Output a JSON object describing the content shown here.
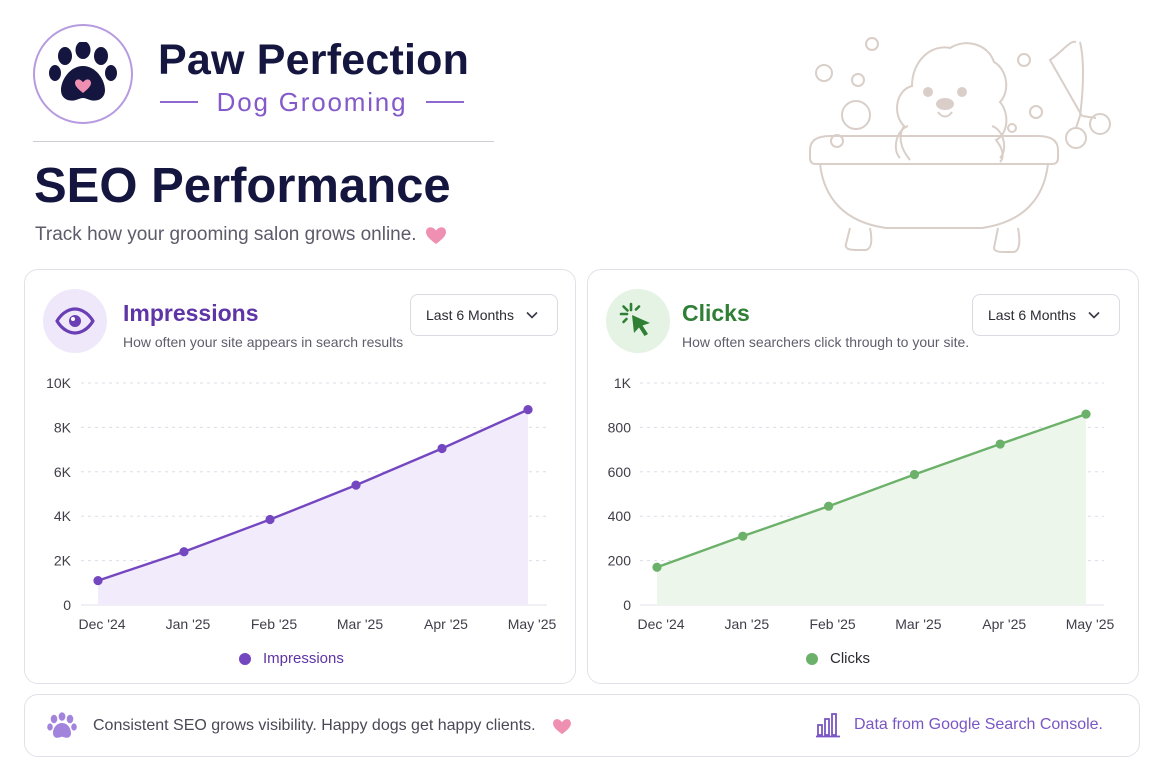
{
  "brand": {
    "name": "Paw Perfection",
    "tagline": "Dog Grooming",
    "logo_icon": "paw-heart-icon"
  },
  "page": {
    "title": "SEO Performance",
    "subtitle": "Track how your grooming salon grows online.",
    "illustration": "dog-in-bathtub-with-scissors"
  },
  "colors": {
    "primary_purple": "#7447c0",
    "primary_green": "#6cb16a",
    "heart_pink": "#ef8fb1",
    "title_navy": "#15163f"
  },
  "cards": {
    "impressions": {
      "title": "Impressions",
      "description": "How often your site appears in search results",
      "dropdown_value": "Last 6 Months",
      "icon": "eye-icon"
    },
    "clicks": {
      "title": "Clicks",
      "description": "How often searchers click through to your site.",
      "dropdown_value": "Last 6 Months",
      "icon": "cursor-click-icon"
    }
  },
  "chart_data": [
    {
      "type": "area",
      "categories": [
        "Dec '24",
        "Jan '25",
        "Feb '25",
        "Mar '25",
        "Apr '25",
        "May '25"
      ],
      "series": [
        {
          "name": "Impressions",
          "values": [
            1100,
            2400,
            3850,
            5400,
            7050,
            8800
          ]
        }
      ],
      "ylim": [
        0,
        10000
      ],
      "yticks": [
        0,
        2000,
        4000,
        6000,
        8000,
        10000
      ],
      "ytick_labels": [
        "0",
        "2K",
        "4K",
        "6K",
        "8K",
        "10K"
      ],
      "grid": true,
      "legend": "bottom-center",
      "color": "#7447c0",
      "fill": "#f1ebfb"
    },
    {
      "type": "area",
      "categories": [
        "Dec '24",
        "Jan '25",
        "Feb '25",
        "Mar '25",
        "Apr '25",
        "May '25"
      ],
      "series": [
        {
          "name": "Clicks",
          "values": [
            170,
            310,
            445,
            588,
            725,
            860
          ]
        }
      ],
      "ylim": [
        0,
        1000
      ],
      "yticks": [
        0,
        200,
        400,
        600,
        800,
        1000
      ],
      "ytick_labels": [
        "0",
        "200",
        "400",
        "600",
        "800",
        "1K"
      ],
      "grid": true,
      "legend": "bottom-center",
      "color": "#6cb16a",
      "fill": "#ecf6ea"
    }
  ],
  "footer": {
    "message": "Consistent SEO grows visibility. Happy dogs get happy clients.",
    "source": "Data from Google Search Console.",
    "left_icon": "paw-icon",
    "right_icon": "bar-chart-icon"
  }
}
